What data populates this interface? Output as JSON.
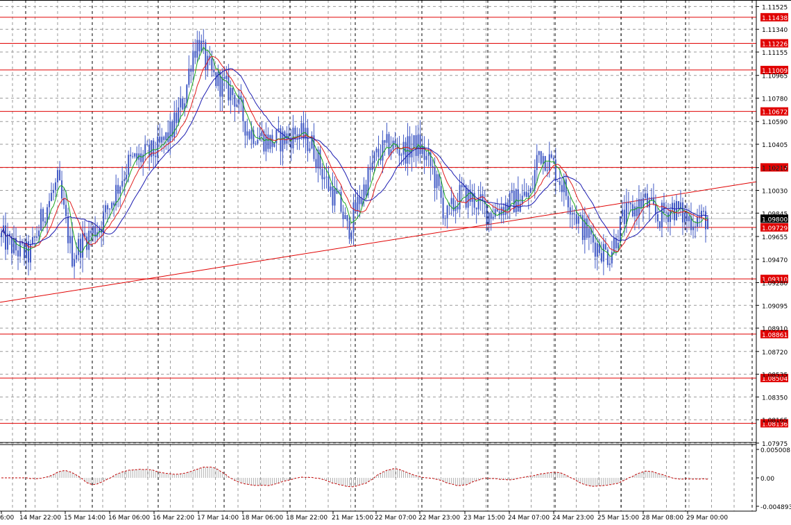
{
  "chart_data": {
    "type": "candlestick",
    "y_axis": {
      "min": 1.0798,
      "max": 1.1155,
      "tick_labels": [
        "1.11525",
        "1.11340",
        "1.11155",
        "1.10965",
        "1.10780",
        "1.10590",
        "1.10405",
        "1.10215",
        "1.10030",
        "1.09845",
        "1.09655",
        "1.09470",
        "1.09280",
        "1.09095",
        "1.08910",
        "1.08720",
        "1.08535",
        "1.08350",
        "1.08165",
        "1.07975"
      ]
    },
    "x_axis": {
      "labels": [
        "6:00",
        "14 Mar 22:00",
        "15 Mar 14:00",
        "16 Mar 06:00",
        "16 Mar 22:00",
        "17 Mar 14:00",
        "18 Mar 06:00",
        "18 Mar 22:00",
        "21 Mar 15:00",
        "22 Mar 07:00",
        "22 Mar 23:00",
        "23 Mar 15:00",
        "24 Mar 07:00",
        "24 Mar 23:00",
        "25 Mar 15:00",
        "28 Mar 08:00",
        "29 Mar 00:00"
      ]
    },
    "current_price": "1.09800",
    "horizontal_levels": [
      {
        "label": "1.11438",
        "value": 1.11438
      },
      {
        "label": "1.11226",
        "value": 1.11226
      },
      {
        "label": "1.11009",
        "value": 1.11009
      },
      {
        "label": "1.10672",
        "value": 1.10672
      },
      {
        "label": "1.10217",
        "value": 1.10217
      },
      {
        "label": "1.09729",
        "value": 1.09729
      },
      {
        "label": "1.09310",
        "value": 1.0931
      },
      {
        "label": "1.08861",
        "value": 1.08861
      },
      {
        "label": "1.08504",
        "value": 1.08504
      },
      {
        "label": "1.08136",
        "value": 1.08136
      }
    ],
    "trendline": {
      "from": [
        0,
        1.0912
      ],
      "to": [
        1,
        1.101
      ]
    },
    "price_path": [
      [
        0.0,
        1.0965
      ],
      [
        0.02,
        1.0955
      ],
      [
        0.04,
        1.095
      ],
      [
        0.06,
        1.0985
      ],
      [
        0.08,
        1.101
      ],
      [
        0.1,
        1.095
      ],
      [
        0.12,
        1.0965
      ],
      [
        0.14,
        1.0975
      ],
      [
        0.16,
        1.1
      ],
      [
        0.18,
        1.1025
      ],
      [
        0.2,
        1.103
      ],
      [
        0.22,
        1.1035
      ],
      [
        0.24,
        1.105
      ],
      [
        0.26,
        1.108
      ],
      [
        0.27,
        1.1115
      ],
      [
        0.28,
        1.1125
      ],
      [
        0.29,
        1.1105
      ],
      [
        0.3,
        1.1095
      ],
      [
        0.31,
        1.109
      ],
      [
        0.33,
        1.108
      ],
      [
        0.35,
        1.105
      ],
      [
        0.36,
        1.105
      ],
      [
        0.38,
        1.1042
      ],
      [
        0.4,
        1.1045
      ],
      [
        0.42,
        1.105
      ],
      [
        0.44,
        1.104
      ],
      [
        0.46,
        1.101
      ],
      [
        0.48,
        1.099
      ],
      [
        0.49,
        1.097
      ],
      [
        0.51,
        1.1
      ],
      [
        0.53,
        1.103
      ],
      [
        0.55,
        1.104
      ],
      [
        0.57,
        1.1035
      ],
      [
        0.59,
        1.104
      ],
      [
        0.61,
        1.102
      ],
      [
        0.63,
        1.098
      ],
      [
        0.65,
        1.1
      ],
      [
        0.67,
        1.0995
      ],
      [
        0.69,
        1.0985
      ],
      [
        0.71,
        1.099
      ],
      [
        0.73,
        1.0995
      ],
      [
        0.75,
        1.1
      ],
      [
        0.76,
        1.1035
      ],
      [
        0.78,
        1.1025
      ],
      [
        0.8,
        1.1
      ],
      [
        0.82,
        1.0975
      ],
      [
        0.84,
        1.096
      ],
      [
        0.86,
        1.095
      ],
      [
        0.88,
        1.098
      ],
      [
        0.9,
        1.099
      ],
      [
        0.91,
        1.0995
      ],
      [
        0.93,
        1.098
      ],
      [
        0.95,
        1.099
      ],
      [
        0.97,
        1.098
      ],
      [
        1.0,
        1.098
      ]
    ],
    "indicator": {
      "scale_labels": [
        "0.005008",
        "0.00",
        "-0.004893"
      ]
    },
    "grid": true
  },
  "colors": {
    "candle": "#3f58c4",
    "level_line": "#e00000",
    "label_bg": "#e00000",
    "ma_fast": "#1aa51a",
    "ma_mid": "#e01b1b",
    "ma_slow": "#1a1ab0",
    "grid": "#9a9a9a",
    "current_bg": "#000000",
    "current_line": "#bbbbbb"
  }
}
